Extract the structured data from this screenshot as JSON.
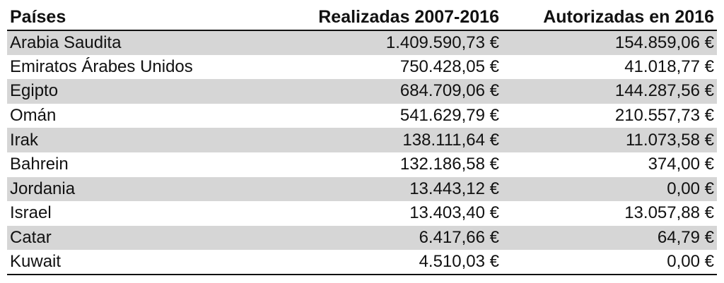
{
  "table": {
    "headers": [
      "Países",
      "Realizadas 2007-2016",
      "Autorizadas en 2016"
    ],
    "rows": [
      [
        "Arabia Saudita",
        "1.409.590,73 €",
        "154.859,06 €"
      ],
      [
        "Emiratos Árabes Unidos",
        "750.428,05 €",
        "41.018,77 €"
      ],
      [
        "Egipto",
        "684.709,06 €",
        "144.287,56 €"
      ],
      [
        "Omán",
        "541.629,79 €",
        "210.557,73 €"
      ],
      [
        "Irak",
        "138.111,64 €",
        "11.073,58 €"
      ],
      [
        "Bahrein",
        "132.186,58 €",
        "374,00 €"
      ],
      [
        "Jordania",
        "13.443,12 €",
        "0,00 €"
      ],
      [
        "Israel",
        "13.403,40 €",
        "13.057,88 €"
      ],
      [
        "Catar",
        "6.417,66 €",
        "64,79 €"
      ],
      [
        "Kuwait",
        "4.510,03 €",
        "0,00 €"
      ]
    ]
  },
  "colors": {
    "stripe": "#d6d6d6",
    "text": "#111111",
    "background": "#ffffff"
  }
}
